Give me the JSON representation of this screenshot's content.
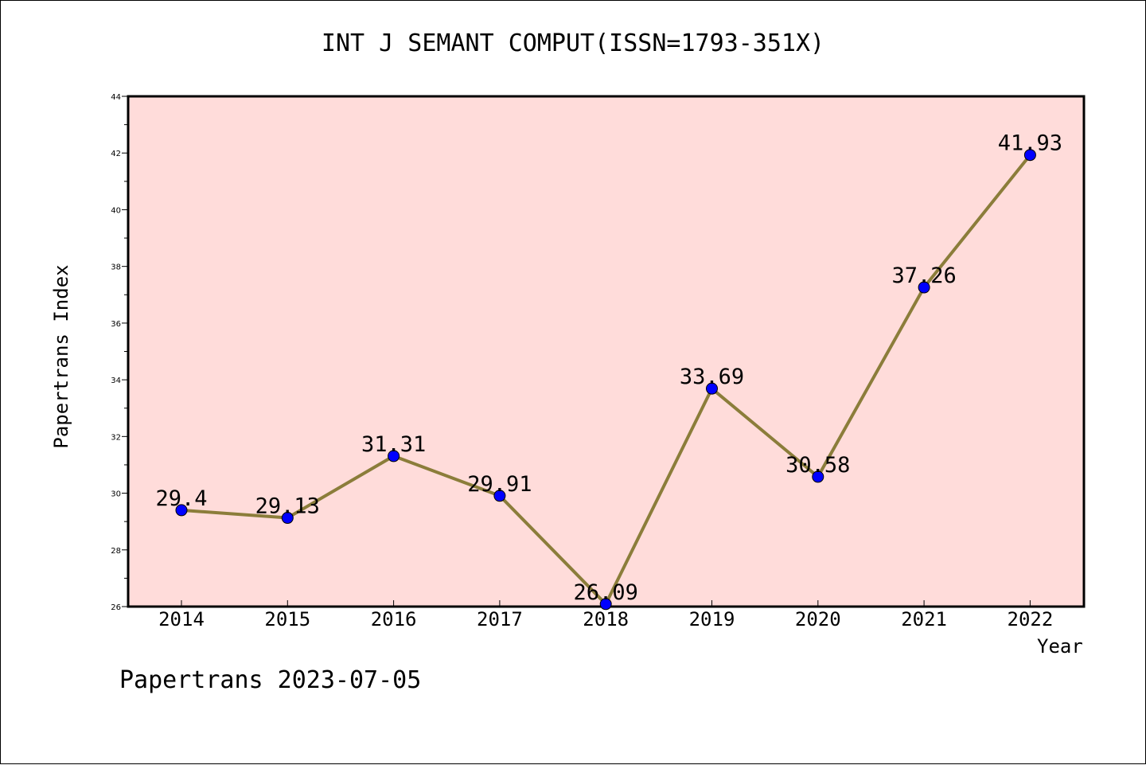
{
  "chart_data": {
    "type": "line",
    "title": "INT J SEMANT COMPUT(ISSN=1793-351X)",
    "xlabel": "Year",
    "ylabel": "Papertrans Index",
    "categories": [
      "2014",
      "2015",
      "2016",
      "2017",
      "2018",
      "2019",
      "2020",
      "2021",
      "2022"
    ],
    "series": [
      {
        "values": [
          29.4,
          29.13,
          31.31,
          29.91,
          26.09,
          33.69,
          30.58,
          37.26,
          41.93
        ],
        "data_labels": [
          "29.4",
          "29.13",
          "31.31",
          "29.91",
          "26.09",
          "33.69",
          "30.58",
          "37.26",
          "41.93"
        ],
        "line_color": "#8B7D3A",
        "marker_color": "#0000FF"
      }
    ],
    "ylim": [
      26,
      44
    ],
    "yticks": [
      "26",
      "28",
      "30",
      "32",
      "34",
      "36",
      "38",
      "40",
      "42",
      "44"
    ],
    "plot_background": "#FFDCDA",
    "grid": false,
    "legend": "none"
  },
  "footer": "Papertrans 2023-07-05"
}
